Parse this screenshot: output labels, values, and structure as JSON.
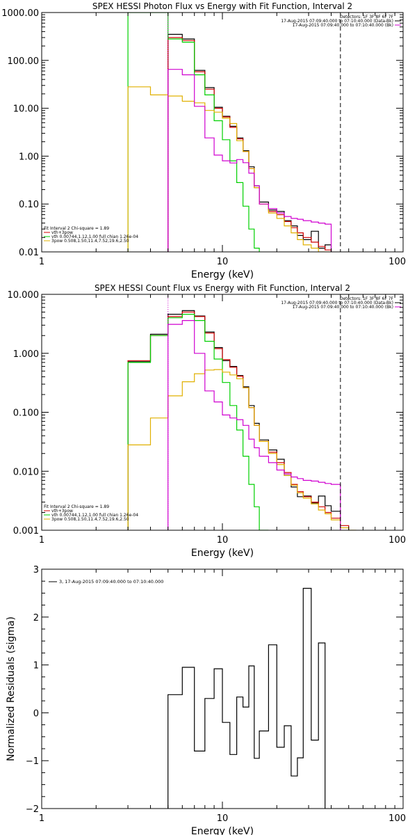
{
  "chart_data": [
    {
      "type": "line",
      "title": "SPEX HESSI Photon Flux vs Energy with Fit Function, Interval 2",
      "xlabel": "Energy (keV)",
      "ylabel": "",
      "xscale": "log",
      "yscale": "log",
      "xlim": [
        1,
        100
      ],
      "ylim": [
        0.01,
        1000
      ],
      "xtick_values": [
        1,
        10,
        100
      ],
      "xtick_labels": [
        "1",
        "10",
        "100"
      ],
      "ytick_values": [
        1000,
        100,
        10,
        1,
        0.1,
        0.01
      ],
      "ytick_labels": [
        "1000.00",
        "100.00",
        "10.00",
        "1.00",
        "0.10",
        "0.01"
      ],
      "info_lines": [
        "Detectors: 1F 3F 8F 6F 7F",
        "17-Aug-2015 07:09:40.000 to 07:10:40.000 (Data-Bk)",
        "17-Aug-2015 07:09:40.000 to 07:10:40.000 (Bk)"
      ],
      "info_colors": [
        "",
        "#000000",
        "#d000d0"
      ],
      "legend_header": "Fit Interval 2   Chi-square = 1.89",
      "legend": [
        {
          "label": "vth+3pow",
          "color": "#d00000"
        },
        {
          "label": "vth 0.00744,1.12,1.00  full chian 1.26e-04",
          "color": "#00d000"
        },
        {
          "label": "3pow 0.508,1.50,11.4,7.52,19.6,2.50",
          "color": "#e0b000"
        }
      ],
      "fit_range_keV": [
        5.0,
        45.0
      ],
      "bin_edges": [
        3,
        4,
        5,
        6,
        7,
        8,
        9,
        10,
        11,
        12,
        13,
        14,
        15,
        16,
        18,
        20,
        22,
        24,
        26,
        28,
        31,
        34,
        37,
        40,
        45
      ],
      "series": [
        {
          "name": "Data-Bk",
          "color": "#000000",
          "values": [
            null,
            null,
            350,
            280,
            62,
            27,
            10.5,
            6.8,
            4.2,
            2.4,
            1.3,
            0.6,
            0.24,
            0.11,
            0.075,
            0.07,
            0.045,
            0.035,
            0.022,
            0.018,
            0.027,
            0.012,
            0.014,
            null
          ]
        },
        {
          "name": "vth+3pow",
          "color": "#d00000",
          "values": [
            null,
            null,
            300,
            260,
            58,
            25,
            10.0,
            6.6,
            4.0,
            2.3,
            1.25,
            0.55,
            0.22,
            0.1,
            0.07,
            0.06,
            0.043,
            0.032,
            0.025,
            0.02,
            0.016,
            0.013,
            0.011,
            null
          ]
        },
        {
          "name": "vth",
          "color": "#00d000",
          "values": [
            1000,
            1000,
            280,
            240,
            50,
            19,
            5.5,
            2.2,
            0.8,
            0.28,
            0.09,
            0.03,
            0.012,
            null,
            null,
            null,
            null,
            null,
            null,
            null,
            null,
            null,
            null,
            null
          ]
        },
        {
          "name": "3pow",
          "color": "#e0b000",
          "values": [
            28,
            19,
            18,
            14,
            13,
            9.0,
            8.3,
            6.2,
            4.8,
            2.1,
            1.25,
            0.55,
            0.22,
            0.1,
            0.065,
            0.05,
            0.035,
            0.025,
            0.018,
            0.014,
            0.012,
            0.01,
            0.009,
            null
          ]
        },
        {
          "name": "Bk",
          "color": "#d000d0",
          "values": [
            null,
            null,
            65,
            50,
            11.0,
            2.4,
            1.05,
            0.8,
            0.72,
            0.85,
            0.73,
            0.44,
            0.24,
            0.1,
            0.08,
            0.065,
            0.055,
            0.05,
            0.048,
            0.045,
            0.042,
            0.04,
            0.038,
            null
          ]
        }
      ]
    },
    {
      "type": "line",
      "title": "SPEX HESSI Count Flux vs Energy with Fit Function, Interval 2",
      "xlabel": "Energy (keV)",
      "ylabel": "",
      "xscale": "log",
      "yscale": "log",
      "xlim": [
        1,
        100
      ],
      "ylim": [
        0.001,
        10
      ],
      "xtick_values": [
        1,
        10,
        100
      ],
      "xtick_labels": [
        "1",
        "10",
        "100"
      ],
      "ytick_values": [
        10,
        1,
        0.1,
        0.01,
        0.001
      ],
      "ytick_labels": [
        "10.000",
        "1.000",
        "0.100",
        "0.010",
        "0.001"
      ],
      "info_lines": [
        "Detectors: 1F 3F 8F 6F 7F",
        "17-Aug-2015 07:09:40.000 to 07:10:40.000 (Data-Bk)",
        "17-Aug-2015 07:09:40.000 to 07:10:40.000 (Bk)"
      ],
      "info_colors": [
        "",
        "#000000",
        "#d000d0"
      ],
      "legend_header": "Fit Interval 2   Chi-square = 1.89",
      "legend": [
        {
          "label": "vth+3pow",
          "color": "#d00000"
        },
        {
          "label": "vth 0.00744,1.12,1.00  full chian 1.26e-04",
          "color": "#00d000"
        },
        {
          "label": "3pow 0.508,1.50,11.4,7.52,19.6,2.50",
          "color": "#e0b000"
        }
      ],
      "fit_range_keV": [
        5.0,
        45.0
      ],
      "bin_edges": [
        3,
        4,
        5,
        6,
        7,
        8,
        9,
        10,
        11,
        12,
        13,
        14,
        15,
        16,
        18,
        20,
        22,
        24,
        26,
        28,
        31,
        34,
        37,
        40,
        45,
        50,
        55
      ],
      "series": [
        {
          "name": "Data-Bk",
          "color": "#000000",
          "values": [
            0.72,
            2.1,
            4.6,
            5.3,
            4.3,
            2.3,
            1.25,
            0.75,
            0.6,
            0.42,
            0.27,
            0.13,
            0.065,
            0.034,
            0.023,
            0.016,
            0.0085,
            0.0054,
            0.0037,
            0.0038,
            0.0029,
            0.0038,
            0.0026,
            0.0021,
            null,
            null
          ]
        },
        {
          "name": "vth+3pow",
          "color": "#d00000",
          "values": [
            0.75,
            2.0,
            4.2,
            5.0,
            4.2,
            2.2,
            1.2,
            0.78,
            0.58,
            0.41,
            0.26,
            0.12,
            0.06,
            0.032,
            0.021,
            0.014,
            0.0095,
            0.006,
            0.0045,
            0.0037,
            0.003,
            0.0025,
            0.002,
            0.0016,
            0.0012,
            null
          ]
        },
        {
          "name": "vth",
          "color": "#00d000",
          "values": [
            0.7,
            2.0,
            4.0,
            4.6,
            3.6,
            1.6,
            0.8,
            0.32,
            0.13,
            0.05,
            0.018,
            0.006,
            0.0025,
            0.0009,
            null,
            null,
            null,
            null,
            null,
            null,
            null,
            null,
            null,
            null,
            null,
            null
          ]
        },
        {
          "name": "3pow",
          "color": "#e0b000",
          "values": [
            0.028,
            0.08,
            0.19,
            0.33,
            0.45,
            0.52,
            0.53,
            0.48,
            0.43,
            0.37,
            0.26,
            0.12,
            0.06,
            0.032,
            0.02,
            0.013,
            0.0085,
            0.0058,
            0.0043,
            0.0035,
            0.0028,
            0.0022,
            0.0019,
            0.0015,
            0.0011,
            0.0009
          ]
        },
        {
          "name": "Bk",
          "color": "#d000d0",
          "values": [
            null,
            null,
            3.1,
            3.6,
            1.0,
            0.23,
            0.15,
            0.09,
            0.08,
            0.075,
            0.06,
            0.035,
            0.025,
            0.018,
            0.014,
            0.0105,
            0.009,
            0.008,
            0.0075,
            0.007,
            0.0068,
            0.0065,
            0.0062,
            0.006,
            null,
            null
          ]
        }
      ]
    },
    {
      "type": "line",
      "title": "",
      "xlabel": "Energy (keV)",
      "ylabel": "Normalized Residuals (sigma)",
      "xscale": "log",
      "yscale": "linear",
      "xlim": [
        1,
        100
      ],
      "ylim": [
        -2,
        3
      ],
      "xtick_values": [
        1,
        10,
        100
      ],
      "xtick_labels": [
        "1",
        "10",
        "100"
      ],
      "ytick_values": [
        3,
        2,
        1,
        0,
        -1,
        -2
      ],
      "ytick_labels": [
        "3",
        "2",
        "1",
        "0",
        "−1",
        "−2"
      ],
      "legend": [
        {
          "label": "3, 17-Aug-2015 07:09:40.000 to 07:10:40.000",
          "color": "#000000"
        }
      ],
      "bin_edges": [
        5,
        6,
        7,
        8,
        9,
        10,
        11,
        12,
        13,
        14,
        15,
        16,
        18,
        20,
        22,
        24,
        26,
        28,
        31,
        34,
        37,
        40,
        45
      ],
      "series": [
        {
          "name": "",
          "color": "#000000",
          "values": [
            0.38,
            0.95,
            -0.8,
            0.3,
            0.92,
            -0.2,
            -0.87,
            0.33,
            0.12,
            0.98,
            -0.95,
            -0.38,
            1.42,
            -0.72,
            -0.27,
            -1.32,
            -0.94,
            2.6,
            -0.57,
            1.46,
            null,
            null
          ]
        }
      ]
    }
  ]
}
